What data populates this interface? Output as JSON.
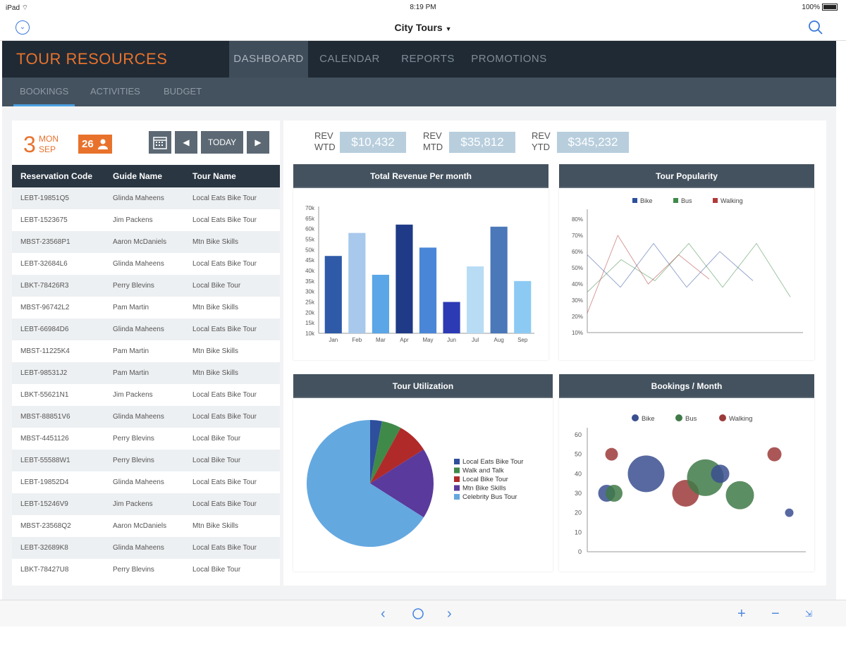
{
  "status_bar": {
    "device": "iPad",
    "time": "8:19 PM",
    "battery": "100%"
  },
  "nav": {
    "title": "City Tours"
  },
  "app": {
    "brand": "TOUR RESOURCES",
    "main_tabs": [
      {
        "label": "DASHBOARD",
        "active": true
      },
      {
        "label": "CALENDAR",
        "active": false
      },
      {
        "label": "REPORTS",
        "active": false
      },
      {
        "label": "PROMOTIONS",
        "active": false
      }
    ],
    "sub_tabs": [
      {
        "label": "BOOKINGS",
        "active": true
      },
      {
        "label": "ACTIVITIES",
        "active": false
      },
      {
        "label": "BUDGET",
        "active": false
      }
    ]
  },
  "date": {
    "day": "3",
    "weekday": "MON",
    "month": "SEP",
    "count": "26"
  },
  "date_nav": {
    "today": "TODAY"
  },
  "table": {
    "headers": [
      "Reservation Code",
      "Guide Name",
      "Tour Name"
    ],
    "rows": [
      [
        "LEBT-19851Q5",
        "Glinda Maheens",
        "Local Eats Bike Tour"
      ],
      [
        "LEBT-1523675",
        "Jim Packens",
        "Local Eats Bike Tour"
      ],
      [
        "MBST-23568P1",
        "Aaron McDaniels",
        "Mtn Bike Skills"
      ],
      [
        "LEBT-32684L6",
        "Glinda Maheens",
        "Local Eats Bike Tour"
      ],
      [
        "LBKT-78426R3",
        "Perry Blevins",
        "Local Bike Tour"
      ],
      [
        "MBST-96742L2",
        "Pam Martin",
        "Mtn Bike Skills"
      ],
      [
        "LEBT-66984D6",
        "Glinda Maheens",
        "Local Eats Bike Tour"
      ],
      [
        "MBST-11225K4",
        "Pam Martin",
        "Mtn Bike Skills"
      ],
      [
        "LEBT-98531J2",
        "Pam Martin",
        "Mtn Bike Skills"
      ],
      [
        "LBKT-55621N1",
        "Jim Packens",
        "Local Eats Bike Tour"
      ],
      [
        "MBST-88851V6",
        "Glinda Maheens",
        "Local Eats Bike Tour"
      ],
      [
        "MBST-4451126",
        "Perry Blevins",
        "Local Bike Tour"
      ],
      [
        "LEBT-55588W1",
        "Perry Blevins",
        "Local Bike Tour"
      ],
      [
        "LEBT-19852D4",
        "Glinda Maheens",
        "Local Eats Bike Tour"
      ],
      [
        "LEBT-15246V9",
        "Jim Packens",
        "Local Eats Bike Tour"
      ],
      [
        "MBST-23568Q2",
        "Aaron McDaniels",
        "Mtn Bike Skills"
      ],
      [
        "LEBT-32689K8",
        "Glinda Maheens",
        "Local Eats Bike Tour"
      ],
      [
        "LBKT-78427U8",
        "Perry Blevins",
        "Local Bike Tour"
      ]
    ]
  },
  "kpis": [
    {
      "label1": "REV",
      "label2": "WTD",
      "value": "$10,432"
    },
    {
      "label1": "REV",
      "label2": "MTD",
      "value": "$35,812"
    },
    {
      "label1": "REV",
      "label2": "YTD",
      "value": "$345,232"
    }
  ],
  "panels": {
    "revenue": "Total Revenue Per month",
    "popularity": "Tour Popularity",
    "utilization": "Tour Utilization",
    "bookings": "Bookings / Month"
  },
  "chart_data": [
    {
      "type": "bar",
      "title": "Total Revenue Per month",
      "categories": [
        "Jan",
        "Feb",
        "Mar",
        "Apr",
        "May",
        "Jun",
        "Jul",
        "Aug",
        "Sep"
      ],
      "values": [
        47000,
        58000,
        38000,
        62000,
        51000,
        25000,
        42000,
        61000,
        35000
      ],
      "colors": [
        "#2e5aa8",
        "#a8c8ec",
        "#5aa6e6",
        "#1f3a86",
        "#4a86d8",
        "#2c3ab4",
        "#b8dcf4",
        "#4a78b8",
        "#8ccaf4"
      ],
      "yticks": [
        "10k",
        "15k",
        "20k",
        "25k",
        "30k",
        "35k",
        "40k",
        "45k",
        "50k",
        "55k",
        "60k",
        "65k",
        "70k"
      ],
      "ylim": [
        10000,
        70000
      ]
    },
    {
      "type": "line",
      "title": "Tour Popularity",
      "legend": [
        "Bike",
        "Bus",
        "Walking"
      ],
      "legend_colors": [
        "#2e4f9c",
        "#3f8a48",
        "#b03a3a"
      ],
      "yticks": [
        "10%",
        "20%",
        "30%",
        "40%",
        "50%",
        "60%",
        "70%",
        "80%"
      ],
      "ylim": [
        10,
        80
      ],
      "series": [
        {
          "name": "Bike",
          "values": [
            58,
            38,
            65,
            38,
            60,
            42
          ]
        },
        {
          "name": "Bus",
          "values": [
            35,
            55,
            42,
            65,
            38,
            65,
            32
          ]
        },
        {
          "name": "Walking",
          "values": [
            22,
            70,
            40,
            58,
            43
          ]
        }
      ]
    },
    {
      "type": "pie",
      "title": "Tour Utilization",
      "labels": [
        "Local Eats Bike Tour",
        "Walk and Talk",
        "Local Bike Tour",
        "Mtn Bike Skills",
        "Celebrity Bus Tour"
      ],
      "values": [
        3,
        5,
        8,
        18,
        66
      ],
      "colors": [
        "#2e4f9c",
        "#3f8a48",
        "#b02a2a",
        "#5a3a9c",
        "#64a8e0"
      ]
    },
    {
      "type": "scatter",
      "title": "Bookings / Month",
      "legend": [
        "Bike",
        "Bus",
        "Walking"
      ],
      "legend_colors": [
        "#3a4f8f",
        "#3f7a48",
        "#9c3a3a"
      ],
      "yticks": [
        "0",
        "10",
        "20",
        "30",
        "40",
        "50",
        "60"
      ],
      "ylim": [
        0,
        60
      ],
      "points": [
        {
          "series": "Bike",
          "x": 1,
          "y": 30,
          "r": 12
        },
        {
          "series": "Bus",
          "x": 1.3,
          "y": 30,
          "r": 12
        },
        {
          "series": "Walking",
          "x": 1.2,
          "y": 50,
          "r": 9
        },
        {
          "series": "Bike",
          "x": 2.6,
          "y": 40,
          "r": 26
        },
        {
          "series": "Walking",
          "x": 4.2,
          "y": 30,
          "r": 19
        },
        {
          "series": "Bus",
          "x": 5.0,
          "y": 38,
          "r": 26
        },
        {
          "series": "Bike",
          "x": 5.6,
          "y": 40,
          "r": 13
        },
        {
          "series": "Bus",
          "x": 6.4,
          "y": 29,
          "r": 20
        },
        {
          "series": "Walking",
          "x": 7.8,
          "y": 50,
          "r": 10
        },
        {
          "series": "Bike",
          "x": 8.4,
          "y": 20,
          "r": 6
        }
      ]
    }
  ]
}
